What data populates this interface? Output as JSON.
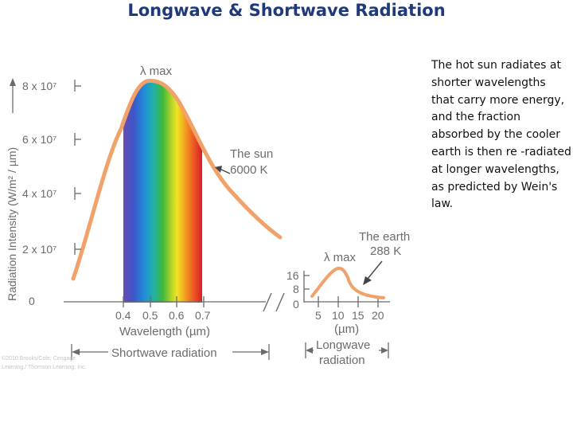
{
  "slide": {
    "title": "Longwave & Shortwave Radiation",
    "caption": "The hot sun radiates at shorter wavelengths that carry more energy, and the fraction absorbed by the cooler earth is then re -radiated at longer wavelengths, as predicted by Wein's law."
  },
  "diagram": {
    "y_axis_label": "Radiation Intensity (W/m² / µm)",
    "sun_y_ticks": [
      "8 x 10⁷",
      "6 x 10⁷",
      "4 x 10⁷",
      "2 x 10⁷",
      "0"
    ],
    "sun_x_ticks": [
      "0.4",
      "0.5",
      "0.6",
      "0.7"
    ],
    "sun_x_label": "Wavelength (µm)",
    "sun_peak_label": "λ max",
    "sun_curve_label": [
      "The sun",
      "6000 K"
    ],
    "earth_y_ticks": [
      "16",
      "8",
      "0"
    ],
    "earth_x_ticks": [
      "5",
      "10",
      "15",
      "20"
    ],
    "earth_x_label": "(µm)",
    "earth_peak_label": "λ max",
    "earth_curve_label": [
      "The earth",
      "288 K"
    ],
    "shortwave_label": "Shortwave radiation",
    "longwave_label": [
      "Longwave",
      "radiation"
    ],
    "copyright": [
      "©2010 Brooks/Cole, Cengage",
      "Learning / Thomson Learning, Inc."
    ],
    "colors": {
      "panel_background": "#ffffff",
      "curve": "#f0a26a",
      "axis": "#6b6b6b",
      "title": "#1f3a7a"
    }
  }
}
